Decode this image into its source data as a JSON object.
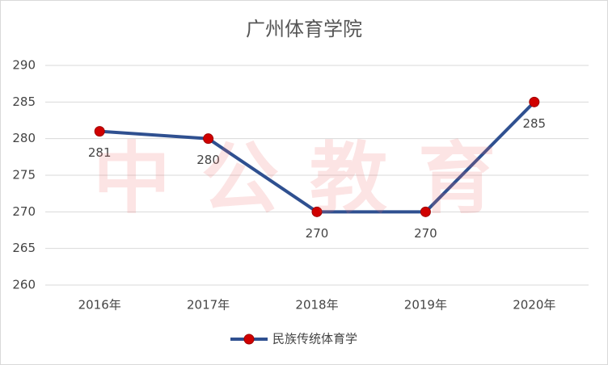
{
  "chart_data": {
    "type": "line",
    "title": "广州体育学院",
    "watermark": "中公教育",
    "categories": [
      "2016年",
      "2017年",
      "2018年",
      "2019年",
      "2020年"
    ],
    "series": [
      {
        "name": "民族传统体育学",
        "color": "#2f5090",
        "marker_color": "#d00000",
        "values": [
          281,
          280,
          270,
          270,
          285
        ]
      }
    ],
    "ylim": [
      260,
      290
    ],
    "yticks": [
      260,
      265,
      270,
      275,
      280,
      285,
      290
    ],
    "grid": true,
    "legend": "bottom"
  }
}
